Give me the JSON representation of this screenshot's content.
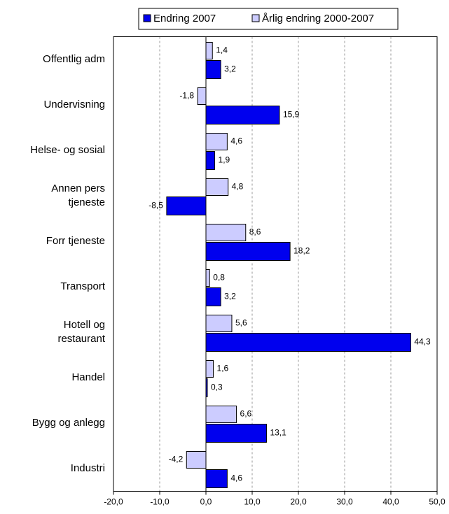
{
  "chart_data": {
    "type": "bar",
    "orientation": "horizontal",
    "categories": [
      "Offentlig adm",
      "Undervisning",
      "Helse- og sosial",
      "Annen pers\ntjeneste",
      "Forr tjeneste",
      "Transport",
      "Hotell og\nrestaurant",
      "Handel",
      "Bygg og anlegg",
      "Industri"
    ],
    "series": [
      {
        "name": "Endring 2007",
        "color": "#0000ee",
        "values": [
          3.2,
          15.9,
          1.9,
          -8.5,
          18.2,
          3.2,
          44.3,
          0.3,
          13.1,
          4.6
        ],
        "value_labels": [
          "3,2",
          "15,9",
          "1,9",
          "-8,5",
          "18,2",
          "3,2",
          "44,3",
          "0,3",
          "13,1",
          "4,6"
        ]
      },
      {
        "name": "Årlig endring 2000-2007",
        "color": "#ccccff",
        "values": [
          1.4,
          -1.8,
          4.6,
          4.8,
          8.6,
          0.8,
          5.6,
          1.6,
          6.6,
          -4.2
        ],
        "value_labels": [
          "1,4",
          "-1,8",
          "4,6",
          "4,8",
          "8,6",
          "0,8",
          "5,6",
          "1,6",
          "6,6",
          "-4,2"
        ]
      }
    ],
    "xlim": [
      -20,
      50
    ],
    "xticks": [
      {
        "value": -20,
        "label": "-20,0"
      },
      {
        "value": -10,
        "label": "-10,0"
      },
      {
        "value": 0,
        "label": "0,0"
      },
      {
        "value": 10,
        "label": "10,0"
      },
      {
        "value": 20,
        "label": "20,0"
      },
      {
        "value": 30,
        "label": "30,0"
      },
      {
        "value": 40,
        "label": "40,0"
      },
      {
        "value": 50,
        "label": "50,0"
      }
    ],
    "grid": true,
    "legend": "top"
  }
}
